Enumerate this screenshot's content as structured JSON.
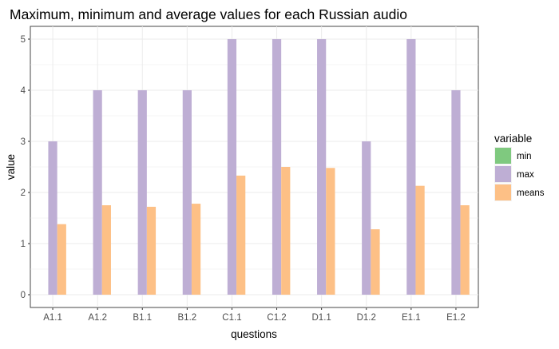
{
  "chart_data": {
    "type": "bar",
    "title": "Maximum, minimum and average values for each Russian audio",
    "xlabel": "questions",
    "ylabel": "value",
    "categories": [
      "A1.1",
      "A1.2",
      "B1.1",
      "B1.2",
      "C1.1",
      "C1.2",
      "D1.1",
      "D1.2",
      "E1.1",
      "E1.2"
    ],
    "series": [
      {
        "name": "min",
        "color": "#7fc97f",
        "values": [
          0,
          0,
          0,
          0,
          0,
          0,
          0,
          0,
          0,
          0
        ]
      },
      {
        "name": "max",
        "color": "#beaed4",
        "values": [
          3,
          4,
          4,
          4,
          5,
          5,
          5,
          3,
          5,
          4
        ]
      },
      {
        "name": "means",
        "color": "#fdc086",
        "values": [
          1.38,
          1.75,
          1.72,
          1.78,
          2.33,
          2.5,
          2.48,
          1.28,
          2.13,
          1.75
        ]
      }
    ],
    "yticks": [
      "0",
      "1",
      "2",
      "3",
      "4",
      "5"
    ],
    "ylim": [
      -0.25,
      5.25
    ],
    "grid": true,
    "legend": {
      "title": "variable",
      "position": "right"
    }
  }
}
